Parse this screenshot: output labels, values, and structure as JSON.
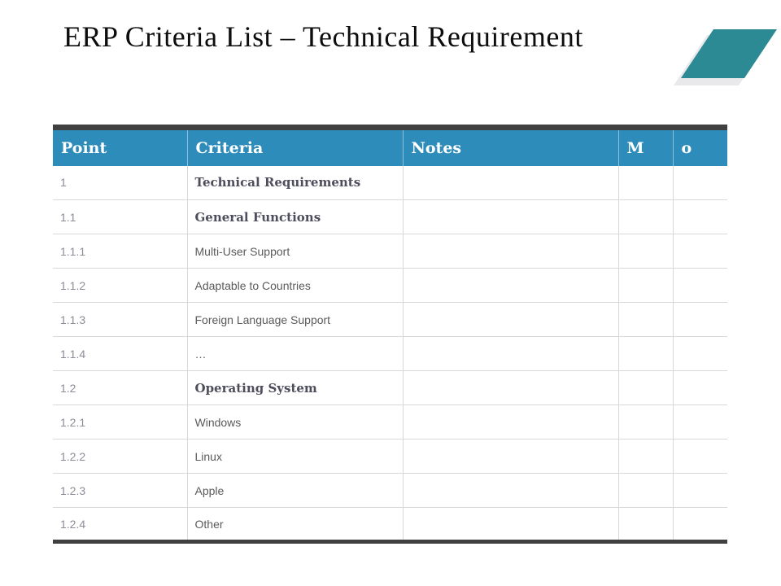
{
  "slide": {
    "title": "ERP Criteria List – Technical Requirement"
  },
  "decoration": {
    "parallelogram_color": "#2B8A93",
    "shadow_color": "#E9E9EC"
  },
  "table": {
    "colors": {
      "header_bg": "#2E8CBA",
      "border_dark": "#404040",
      "grid_line": "#D8D8D8",
      "point_text": "#8C8C99",
      "item_text": "#5A5A5A",
      "bold_item_text": "#4D4D5C"
    },
    "columns": [
      "Point",
      "Criteria",
      "Notes",
      "M",
      "o"
    ],
    "rows": [
      {
        "point": "1",
        "criteria": "Technical Requirements",
        "notes": "",
        "m": "",
        "o": "",
        "bold": true
      },
      {
        "point": "1.1",
        "criteria": "General Functions",
        "notes": "",
        "m": "",
        "o": "",
        "bold": true
      },
      {
        "point": "1.1.1",
        "criteria": "Multi-User Support",
        "notes": "",
        "m": "",
        "o": "",
        "bold": false
      },
      {
        "point": "1.1.2",
        "criteria": "Adaptable to Countries",
        "notes": "",
        "m": "",
        "o": "",
        "bold": false
      },
      {
        "point": "1.1.3",
        "criteria": "Foreign Language Support",
        "notes": "",
        "m": "",
        "o": "",
        "bold": false
      },
      {
        "point": "1.1.4",
        "criteria": "…",
        "notes": "",
        "m": "",
        "o": "",
        "bold": false
      },
      {
        "point": "1.2",
        "criteria": "Operating System",
        "notes": "",
        "m": "",
        "o": "",
        "bold": true
      },
      {
        "point": "1.2.1",
        "criteria": "Windows",
        "notes": "",
        "m": "",
        "o": "",
        "bold": false
      },
      {
        "point": "1.2.2",
        "criteria": "Linux",
        "notes": "",
        "m": "",
        "o": "",
        "bold": false
      },
      {
        "point": "1.2.3",
        "criteria": "Apple",
        "notes": "",
        "m": "",
        "o": "",
        "bold": false
      },
      {
        "point": "1.2.4",
        "criteria": "Other",
        "notes": "",
        "m": "",
        "o": "",
        "bold": false
      }
    ]
  }
}
